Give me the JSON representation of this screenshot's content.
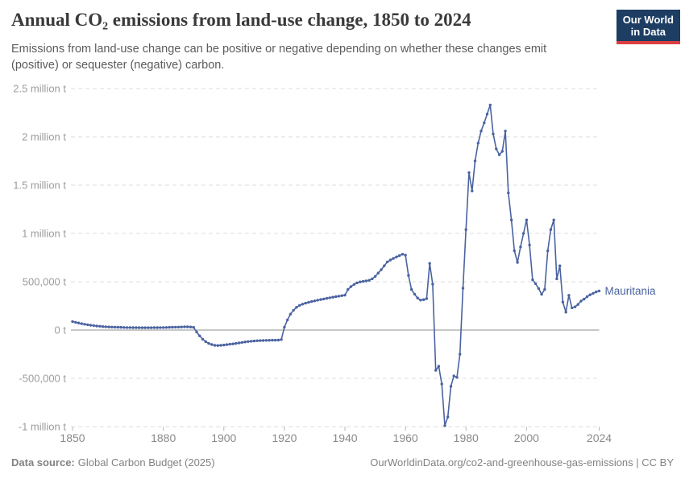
{
  "header": {
    "title": "Annual CO₂ emissions from land-use change, 1850 to 2024",
    "subtitle": "Emissions from land-use change can be positive or negative depending on whether these changes emit (positive) or sequester (negative) carbon.",
    "logo": {
      "line1": "Our World",
      "line2": "in Data"
    }
  },
  "footer": {
    "datasource_label": "Data source:",
    "datasource_text": "Global Carbon Budget (2025)",
    "attribution": "OurWorldinData.org/co2-and-greenhouse-gas-emissions | CC BY"
  },
  "chart_data": {
    "type": "line",
    "title": "Annual CO₂ emissions from land-use change, 1850 to 2024",
    "entity": "Mauritania",
    "unit": "t",
    "line_color": "#4a63a0",
    "grid": "horizontal dashed",
    "legend_position": "end-of-line label",
    "xlim": [
      1850,
      2024
    ],
    "ylim": [
      -1000000,
      2500000
    ],
    "xticks": [
      1850,
      1880,
      1900,
      1920,
      1940,
      1960,
      1980,
      2000,
      2024
    ],
    "yticks": [
      {
        "value": 2500000,
        "label": "2.5 million t"
      },
      {
        "value": 2000000,
        "label": "2 million t"
      },
      {
        "value": 1500000,
        "label": "1.5 million t"
      },
      {
        "value": 1000000,
        "label": "1 million t"
      },
      {
        "value": 500000,
        "label": "500,000 t"
      },
      {
        "value": 0,
        "label": "0 t"
      },
      {
        "value": -500000,
        "label": "-500,000 t"
      },
      {
        "value": -1000000,
        "label": "-1 million t"
      }
    ],
    "x_start_year": 1850,
    "values": [
      88000,
      80000,
      73000,
      66000,
      60000,
      55000,
      50000,
      46000,
      42000,
      39000,
      36000,
      34000,
      32000,
      31000,
      30000,
      29000,
      28000,
      27000,
      26000,
      26000,
      25000,
      25000,
      24000,
      24000,
      24000,
      24000,
      24000,
      25000,
      25000,
      26000,
      26000,
      27000,
      28000,
      29000,
      30000,
      31000,
      32000,
      33000,
      33000,
      32000,
      28000,
      -20000,
      -60000,
      -95000,
      -120000,
      -138000,
      -150000,
      -158000,
      -160000,
      -158000,
      -155000,
      -151000,
      -147000,
      -143000,
      -138000,
      -133000,
      -128000,
      -123000,
      -119000,
      -116000,
      -113000,
      -111000,
      -109000,
      -108000,
      -107000,
      -106000,
      -105000,
      -105000,
      -104000,
      -98000,
      30000,
      105000,
      165000,
      205000,
      235000,
      255000,
      268000,
      278000,
      287000,
      295000,
      302000,
      309000,
      316000,
      322000,
      328000,
      334000,
      340000,
      346000,
      351000,
      356000,
      362000,
      420000,
      450000,
      472000,
      488000,
      498000,
      503000,
      508000,
      515000,
      530000,
      555000,
      590000,
      625000,
      665000,
      705000,
      725000,
      742000,
      757000,
      770000,
      785000,
      775000,
      565000,
      420000,
      372000,
      332000,
      310000,
      315000,
      325000,
      690000,
      475000,
      -417000,
      -375000,
      -558000,
      -990000,
      -900000,
      -583000,
      -475000,
      -490000,
      -250000,
      433000,
      1040000,
      1630000,
      1440000,
      1750000,
      1935000,
      2060000,
      2145000,
      2235000,
      2330000,
      2030000,
      1875000,
      1815000,
      1850000,
      2060000,
      1420000,
      1140000,
      820000,
      700000,
      860000,
      1000000,
      1140000,
      880000,
      520000,
      480000,
      430000,
      370000,
      420000,
      820000,
      1040000,
      1140000,
      530000,
      665000,
      290000,
      185000,
      360000,
      230000,
      240000,
      265000,
      300000,
      320000,
      345000,
      365000,
      380000,
      395000,
      405000
    ]
  }
}
